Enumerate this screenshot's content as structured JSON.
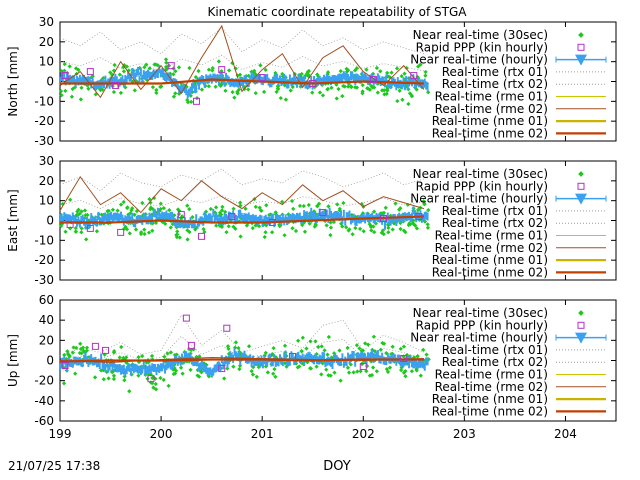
{
  "chart_data": {
    "type": "scatter",
    "title": "Kinematic coordinate repeatability of STGA",
    "xlabel": "DOY",
    "x_ticks": [
      "199",
      "200",
      "201",
      "202",
      "203",
      "204"
    ],
    "xlim": [
      199,
      204.5
    ],
    "data_end_doy": 202.65,
    "footer": "21/07/25 17:38",
    "legend_position": "top-right",
    "legend": [
      {
        "label": "Near real-time (30sec)",
        "style": "points",
        "color": "#1ec81e"
      },
      {
        "label": "Rapid PPP (kin hourly)",
        "style": "squares",
        "color": "#b432c8"
      },
      {
        "label": "Near real-time (hourly)",
        "style": "errorbar-triangle",
        "color": "#3aa0f0"
      },
      {
        "label": "Real-time (rtx 01)",
        "style": "dotted",
        "color": "#9a9a9a"
      },
      {
        "label": "Real-time (rtx 02)",
        "style": "dotted",
        "color": "#9a9a9a"
      },
      {
        "label": "Real-time (rme 01)",
        "style": "line",
        "color": "#c8c800"
      },
      {
        "label": "Real-time (rme 02)",
        "style": "line",
        "color": "#a05020"
      },
      {
        "label": "Real-time (nme 01)",
        "style": "line-thick",
        "color": "#c8b400"
      },
      {
        "label": "Real-time (nme 02)",
        "style": "line-thick",
        "color": "#c04000"
      }
    ],
    "panels": [
      {
        "name": "north",
        "ylabel": "North [mm]",
        "ylim": [
          -30,
          30
        ],
        "y_ticks": [
          "30",
          "20",
          "10",
          "0",
          "-10",
          "-20",
          "-30"
        ],
        "series": [
          {
            "key": "nrt_hourly",
            "x": [
              199.0,
              199.25,
              199.5,
              199.75,
              200.0,
              200.25,
              200.5,
              200.75,
              201.0,
              201.25,
              201.5,
              201.75,
              202.0,
              202.25,
              202.5
            ],
            "y": [
              2,
              0,
              -1,
              3,
              4,
              -5,
              2,
              -1,
              1,
              0,
              -1,
              2,
              1,
              0,
              -1
            ]
          },
          {
            "key": "rapid_ppp",
            "x": [
              199.05,
              199.3,
              199.55,
              200.1,
              200.35,
              200.6,
              201.0,
              201.5,
              202.1,
              202.5
            ],
            "y": [
              3,
              5,
              -2,
              8,
              -10,
              6,
              2,
              -1,
              1,
              3
            ]
          },
          {
            "key": "rtx_01",
            "x": [
              199.0,
              199.2,
              199.4,
              199.6,
              199.8,
              200.0,
              200.2,
              200.4,
              200.6,
              200.8,
              201.0,
              201.2,
              201.4,
              201.6,
              201.8,
              202.0,
              202.2,
              202.4,
              202.6
            ],
            "y": [
              22,
              18,
              25,
              16,
              20,
              14,
              24,
              19,
              27,
              15,
              21,
              17,
              26,
              18,
              22,
              16,
              20,
              17,
              14
            ]
          },
          {
            "key": "rme_02",
            "x": [
              199.0,
              199.2,
              199.4,
              199.6,
              199.8,
              200.0,
              200.2,
              200.4,
              200.6,
              200.8,
              201.0,
              201.2,
              201.4,
              201.6,
              201.8,
              202.0,
              202.2,
              202.4,
              202.6
            ],
            "y": [
              -2,
              5,
              -8,
              10,
              -4,
              8,
              -6,
              12,
              28,
              -5,
              6,
              14,
              -3,
              12,
              18,
              5,
              -2,
              8,
              -4
            ]
          },
          {
            "key": "nme_02",
            "x": [
              199.0,
              199.5,
              200.0,
              200.5,
              201.0,
              201.5,
              202.0,
              202.6
            ],
            "y": [
              -1,
              -1,
              -1,
              1,
              0,
              -1,
              0,
              -1
            ]
          }
        ]
      },
      {
        "name": "east",
        "ylabel": "East [mm]",
        "ylim": [
          -30,
          30
        ],
        "y_ticks": [
          "30",
          "20",
          "10",
          "0",
          "-10",
          "-20",
          "-30"
        ],
        "series": [
          {
            "key": "nrt_hourly",
            "x": [
              199.0,
              199.25,
              199.5,
              199.75,
              200.0,
              200.25,
              200.5,
              200.75,
              201.0,
              201.25,
              201.5,
              201.75,
              202.0,
              202.25,
              202.5
            ],
            "y": [
              1,
              -1,
              2,
              0,
              3,
              -2,
              1,
              2,
              0,
              1,
              3,
              2,
              1,
              0,
              2
            ]
          },
          {
            "key": "rapid_ppp",
            "x": [
              199.1,
              199.3,
              199.6,
              200.2,
              200.4,
              200.7,
              201.1,
              201.6,
              202.2,
              202.55
            ],
            "y": [
              -2,
              -4,
              -6,
              3,
              -8,
              2,
              -1,
              4,
              1,
              2
            ]
          },
          {
            "key": "rtx_01",
            "x": [
              199.0,
              199.2,
              199.4,
              199.6,
              199.8,
              200.0,
              200.2,
              200.4,
              200.6,
              200.8,
              201.0,
              201.2,
              201.4,
              201.6,
              201.8,
              202.0,
              202.2,
              202.4,
              202.6
            ],
            "y": [
              18,
              22,
              15,
              24,
              19,
              17,
              23,
              20,
              26,
              18,
              21,
              19,
              25,
              22,
              17,
              20,
              24,
              18,
              21
            ]
          },
          {
            "key": "rme_02",
            "x": [
              199.0,
              199.2,
              199.4,
              199.6,
              199.8,
              200.0,
              200.2,
              200.4,
              200.6,
              200.8,
              201.0,
              201.2,
              201.4,
              201.6,
              201.8,
              202.0,
              202.2,
              202.4,
              202.6
            ],
            "y": [
              5,
              22,
              8,
              14,
              4,
              16,
              10,
              20,
              12,
              6,
              14,
              8,
              18,
              10,
              15,
              7,
              12,
              9,
              6
            ]
          },
          {
            "key": "nme_02",
            "x": [
              199.0,
              199.5,
              200.0,
              200.5,
              201.0,
              201.5,
              202.0,
              202.6
            ],
            "y": [
              -1,
              -1,
              0,
              -1,
              -1,
              0,
              1,
              2
            ]
          }
        ]
      },
      {
        "name": "up",
        "ylabel": "Up [mm]",
        "ylim": [
          -60,
          60
        ],
        "y_ticks": [
          "60",
          "40",
          "20",
          "0",
          "-20",
          "-40",
          "-60"
        ],
        "series": [
          {
            "key": "nrt_hourly",
            "x": [
              199.0,
              199.25,
              199.5,
              199.75,
              200.0,
              200.25,
              200.5,
              200.75,
              201.0,
              201.25,
              201.5,
              201.75,
              202.0,
              202.25,
              202.5
            ],
            "y": [
              -4,
              2,
              -6,
              -10,
              -8,
              4,
              -12,
              6,
              -2,
              2,
              3,
              -1,
              4,
              2,
              -3
            ]
          },
          {
            "key": "rapid_ppp",
            "x": [
              199.05,
              199.35,
              199.45,
              199.9,
              200.25,
              200.3,
              200.6,
              200.65,
              201.3,
              202.0,
              202.4
            ],
            "y": [
              -5,
              14,
              10,
              -18,
              42,
              15,
              -8,
              32,
              4,
              -6,
              2
            ]
          },
          {
            "key": "rtx_01",
            "x": [
              199.0,
              199.2,
              199.4,
              199.6,
              199.8,
              200.0,
              200.2,
              200.4,
              200.6,
              200.8,
              201.0,
              201.2,
              201.4,
              201.6,
              201.8,
              202.0,
              202.2,
              202.4,
              202.6
            ],
            "y": [
              5,
              12,
              8,
              18,
              6,
              10,
              45,
              15,
              30,
              8,
              14,
              20,
              12,
              35,
              40,
              10,
              25,
              18,
              8
            ]
          },
          {
            "key": "rme_02",
            "x": [
              199.0,
              199.5,
              200.0,
              200.5,
              201.0,
              201.5,
              202.0,
              202.6
            ],
            "y": [
              0,
              -2,
              1,
              3,
              2,
              1,
              0,
              2
            ]
          },
          {
            "key": "nme_02",
            "x": [
              199.0,
              199.5,
              200.0,
              200.5,
              201.0,
              201.5,
              202.0,
              202.6
            ],
            "y": [
              -1,
              0,
              0,
              1,
              1,
              0,
              1,
              1
            ]
          }
        ]
      }
    ]
  }
}
